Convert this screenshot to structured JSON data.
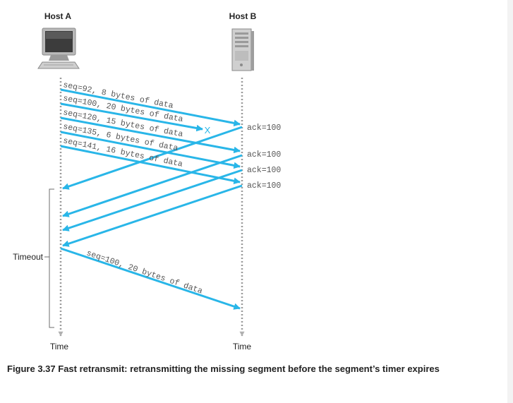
{
  "host_a": {
    "label": "Host A",
    "time_label": "Time",
    "icon": "desktop-computer-icon"
  },
  "host_b": {
    "label": "Host B",
    "time_label": "Time",
    "icon": "server-tower-icon"
  },
  "segments": [
    {
      "label": "seq=92, 8 bytes of data",
      "lost": false
    },
    {
      "label": "seq=100, 20 bytes of data",
      "lost": true
    },
    {
      "label": "seq=120, 15 bytes of data",
      "lost": false
    },
    {
      "label": "seq=135, 6 bytes of data",
      "lost": false
    },
    {
      "label": "seq=141, 16 bytes of data",
      "lost": false
    }
  ],
  "acks": [
    {
      "label": "ack=100"
    },
    {
      "label": "ack=100"
    },
    {
      "label": "ack=100"
    },
    {
      "label": "ack=100"
    }
  ],
  "retransmission": {
    "label": "seq=100, 20 bytes of data"
  },
  "timeout": {
    "label": "Timeout"
  },
  "loss_marker": {
    "symbol": "X"
  },
  "caption": "Figure 3.37 Fast retransmit: retransmitting the missing segment before the segment’s timer expires",
  "colors": {
    "arrow": "#29b6e8",
    "dotted_line": "#9a9a9a",
    "text": "#222222",
    "mono_text": "#555555"
  }
}
